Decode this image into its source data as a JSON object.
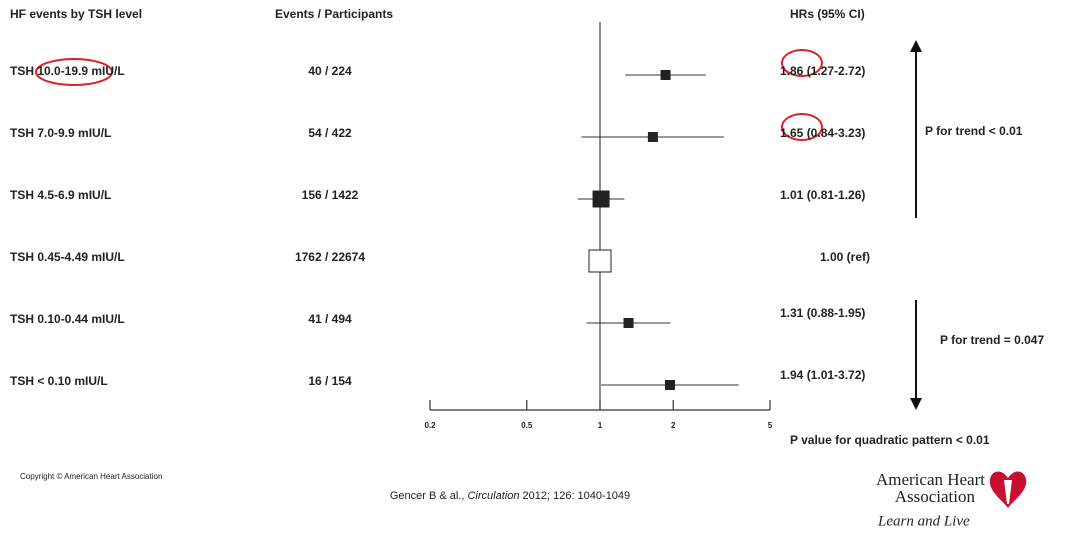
{
  "chart_data": {
    "type": "forest",
    "headers": {
      "label": "HF events by TSH level",
      "events": "Events / Participants",
      "hr": "HRs (95% CI)"
    },
    "categories": [
      "TSH 10.0-19.9 mIU/L",
      "TSH 7.0-9.9 mIU/L",
      "TSH 4.5-6.9 mIU/L",
      "TSH 0.45-4.49 mIU/L",
      "TSH 0.10-0.44 mIU/L",
      "TSH < 0.10 mIU/L"
    ],
    "events": [
      "40 / 224",
      "54 / 422",
      "156 / 1422",
      "1762 / 22674",
      "41 / 494",
      "16 / 154"
    ],
    "values": [
      1.86,
      1.65,
      1.01,
      1.0,
      1.31,
      1.94
    ],
    "lower": [
      1.27,
      0.84,
      0.81,
      null,
      0.88,
      1.01
    ],
    "upper": [
      2.72,
      3.23,
      1.26,
      null,
      1.95,
      3.72
    ],
    "value_labels": [
      "1.86 (1.27-2.72)",
      "1.65 (0.84-3.23)",
      "1.01 (0.81-1.26)",
      "1.00 (ref)",
      "1.31 (0.88-1.95)",
      "1.94 (1.01-3.72)"
    ],
    "xscale": "log",
    "xlim": [
      0.2,
      5
    ],
    "xticks": [
      0.2,
      0.5,
      1,
      2,
      5
    ],
    "ref_line": 1,
    "color": "#222222",
    "annotations": [
      "P for trend < 0.01",
      "P for trend = 0.047",
      "P value for quadratic pattern < 0.01"
    ]
  },
  "footer": {
    "copyright": "Copyright © American Heart Association",
    "citation": {
      "prefix": "Gencer B & al., ",
      "journal": "Circulation",
      "suffix": " 2012; 126: 1040-1049"
    },
    "logo": {
      "line1": "American Heart",
      "line2": "Association",
      "tagline": "Learn and Live"
    }
  }
}
